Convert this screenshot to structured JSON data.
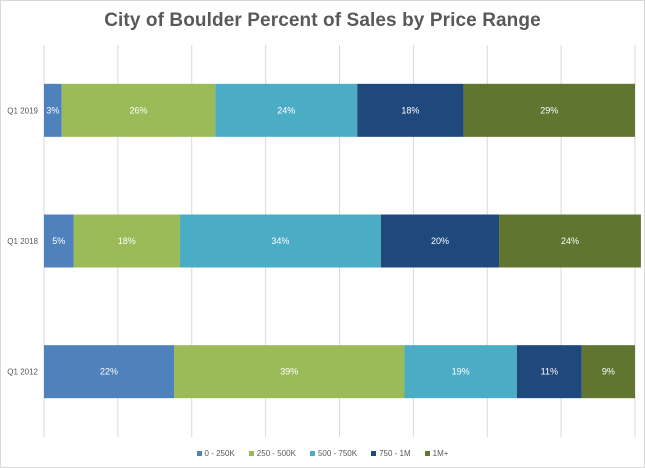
{
  "chart_data": {
    "type": "bar",
    "orientation": "horizontal",
    "stacked": true,
    "title": "City of Boulder Percent of Sales by Price Range",
    "categories": [
      "Q1 2019",
      "Q1 2018",
      "Q1 2012"
    ],
    "series": [
      {
        "name": "0 - 250K",
        "color": "#4f81bd",
        "values": [
          3,
          5,
          22
        ]
      },
      {
        "name": "250 - 500K",
        "color": "#9bbb59",
        "values": [
          26,
          18,
          39
        ]
      },
      {
        "name": "500 - 750K",
        "color": "#4bacc6",
        "values": [
          24,
          34,
          19
        ]
      },
      {
        "name": "750 - 1M",
        "color": "#1f497d",
        "values": [
          18,
          20,
          11
        ]
      },
      {
        "name": "1M+",
        "color": "#5f7530",
        "values": [
          29,
          24,
          9
        ]
      }
    ],
    "data_labels": [
      [
        "3%",
        "26%",
        "24%",
        "18%",
        "29%"
      ],
      [
        "5%",
        "18%",
        "34%",
        "20%",
        "24%"
      ],
      [
        "22%",
        "39%",
        "19%",
        "11%",
        "9%"
      ]
    ],
    "xlim": [
      0,
      100
    ],
    "gridlines": "vertical",
    "legend_position": "bottom"
  }
}
